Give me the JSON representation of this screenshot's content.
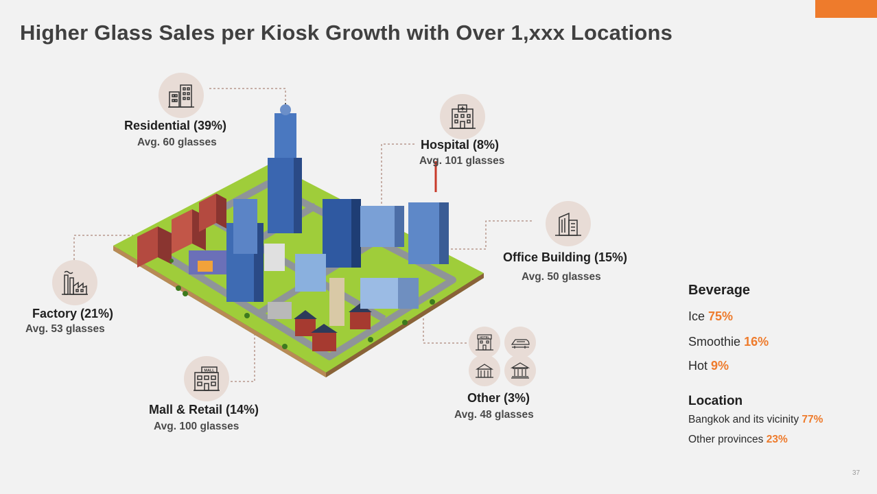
{
  "title": "Higher Glass Sales per Kiosk Growth with Over 1,xxx Locations",
  "categories": {
    "residential": {
      "label": "Residential (39%)",
      "avg": "Avg. 60 glasses",
      "icon": "residential-buildings-icon"
    },
    "hospital": {
      "label": "Hospital (8%)",
      "avg": "Avg. 101 glasses",
      "icon": "hospital-icon"
    },
    "office": {
      "label": "Office Building (15%)",
      "avg": "Avg. 50 glasses",
      "icon": "office-building-icon"
    },
    "factory": {
      "label": "Factory (21%)",
      "avg": "Avg. 53 glasses",
      "icon": "factory-icon"
    },
    "mall": {
      "label": "Mall & Retail (14%)",
      "avg": "Avg. 100 glasses",
      "icon": "mall-icon",
      "sign": "MALL"
    },
    "other": {
      "label": "Other (3%)",
      "avg": "Avg. 48 glasses",
      "icons": [
        "hotel-icon",
        "train-icon",
        "temple-icon",
        "government-building-icon"
      ],
      "hotel_sign": "HOTEL"
    }
  },
  "beverage": {
    "heading": "Beverage",
    "items": [
      {
        "name": "Ice",
        "pct": "75%"
      },
      {
        "name": "Smoothie",
        "pct": "16%"
      },
      {
        "name": "Hot",
        "pct": "9%"
      }
    ]
  },
  "location": {
    "heading": "Location",
    "items": [
      {
        "name": "Bangkok and its vicinity",
        "pct": "77%"
      },
      {
        "name": "Other provinces",
        "pct": "23%"
      }
    ]
  },
  "page_number": "37",
  "colors": {
    "accent": "#ee7b2c",
    "icon_circle": "#e8dcd6",
    "text": "#262626"
  }
}
